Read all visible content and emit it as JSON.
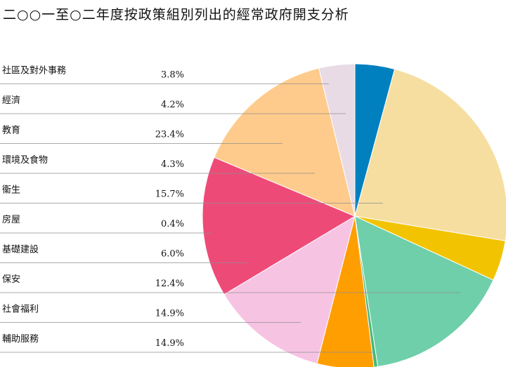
{
  "title": "二○○一至○二年度按政策組別列出的經常政府開支分析",
  "chart_data": {
    "type": "pie",
    "title": "二○○一至○二年度按政策組別列出的經常政府開支分析",
    "unit": "%",
    "slices": [
      {
        "label": "社區及對外事務",
        "value": 3.8,
        "value_label": "3.8%",
        "color": "#e9dbe6"
      },
      {
        "label": "經濟",
        "value": 4.2,
        "value_label": "4.2%",
        "color": "#0080bf"
      },
      {
        "label": "教育",
        "value": 23.4,
        "value_label": "23.4%",
        "color": "#f6dea0"
      },
      {
        "label": "環境及食物",
        "value": 4.3,
        "value_label": "4.3%",
        "color": "#f2c300"
      },
      {
        "label": "衞生",
        "value": 15.7,
        "value_label": "15.7%",
        "color": "#6ecfaa"
      },
      {
        "label": "房屋",
        "value": 0.4,
        "value_label": "0.4%",
        "color": "#47b878"
      },
      {
        "label": "基礎建設",
        "value": 6.0,
        "value_label": "6.0%",
        "color": "#ff9e00"
      },
      {
        "label": "保安",
        "value": 12.4,
        "value_label": "12.4%",
        "color": "#f7c3e3"
      },
      {
        "label": "社會福利",
        "value": 14.9,
        "value_label": "14.9%",
        "color": "#ee4a78"
      },
      {
        "label": "輔助服務",
        "value": 14.9,
        "value_label": "14.9%",
        "color": "#ffcb8c"
      }
    ],
    "legend": "left"
  }
}
